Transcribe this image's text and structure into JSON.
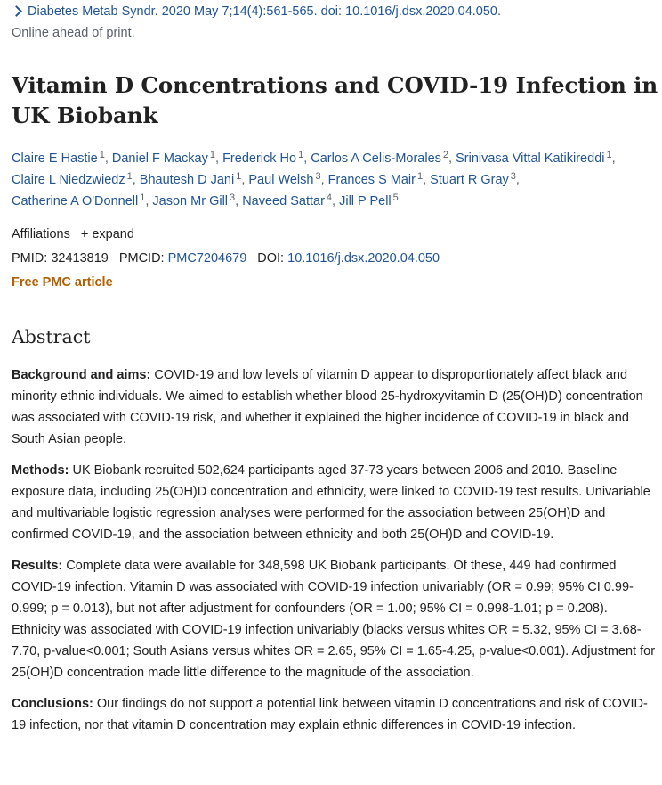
{
  "citation": {
    "journal_line": "Diabetes Metab Syndr. 2020 May 7;14(4):561-565. doi: 10.1016/j.dsx.2020.04.050.",
    "status": "Online ahead of print."
  },
  "title": "Vitamin D Concentrations and COVID-19 Infection in UK Biobank",
  "authors": [
    {
      "name": "Claire E Hastie",
      "aff": "1"
    },
    {
      "name": "Daniel F Mackay",
      "aff": "1"
    },
    {
      "name": "Frederick Ho",
      "aff": "1"
    },
    {
      "name": "Carlos A Celis-Morales",
      "aff": "2"
    },
    {
      "name": "Srinivasa Vittal Katikireddi",
      "aff": "1"
    },
    {
      "name": "Claire L Niedzwiedz",
      "aff": "1"
    },
    {
      "name": "Bhautesh D Jani",
      "aff": "1"
    },
    {
      "name": "Paul Welsh",
      "aff": "3"
    },
    {
      "name": "Frances S Mair",
      "aff": "1"
    },
    {
      "name": "Stuart R Gray",
      "aff": "3"
    },
    {
      "name": "Catherine A O'Donnell",
      "aff": "1"
    },
    {
      "name": "Jason Mr Gill",
      "aff": "3"
    },
    {
      "name": "Naveed Sattar",
      "aff": "4"
    },
    {
      "name": "Jill P Pell",
      "aff": "5"
    }
  ],
  "affiliations": {
    "label": "Affiliations",
    "expand_label": "expand"
  },
  "ids": {
    "pmid_label": "PMID:",
    "pmid": "32413819",
    "pmcid_label": "PMCID:",
    "pmcid": "PMC7204679",
    "doi_label": "DOI:",
    "doi": "10.1016/j.dsx.2020.04.050"
  },
  "free_pmc": "Free PMC article",
  "abstract": {
    "heading": "Abstract",
    "sections": [
      {
        "label": "Background and aims:",
        "text": "COVID-19 and low levels of vitamin D appear to disproportionately affect black and minority ethnic individuals. We aimed to establish whether blood 25-hydroxyvitamin D (25(OH)D) concentration was associated with COVID-19 risk, and whether it explained the higher incidence of COVID-19 in black and South Asian people."
      },
      {
        "label": "Methods:",
        "text": "UK Biobank recruited 502,624 participants aged 37-73 years between 2006 and 2010. Baseline exposure data, including 25(OH)D concentration and ethnicity, were linked to COVID-19 test results. Univariable and multivariable logistic regression analyses were performed for the association between 25(OH)D and confirmed COVID-19, and the association between ethnicity and both 25(OH)D and COVID-19."
      },
      {
        "label": "Results:",
        "text": "Complete data were available for 348,598 UK Biobank participants. Of these, 449 had confirmed COVID-19 infection. Vitamin D was associated with COVID-19 infection univariably (OR = 0.99; 95% CI 0.99-0.999; p = 0.013), but not after adjustment for confounders (OR = 1.00; 95% CI = 0.998-1.01; p = 0.208). Ethnicity was associated with COVID-19 infection univariably (blacks versus whites OR = 5.32, 95% CI = 3.68-7.70, p-value<0.001; South Asians versus whites OR = 2.65, 95% CI = 1.65-4.25, p-value<0.001). Adjustment for 25(OH)D concentration made little difference to the magnitude of the association."
      },
      {
        "label": "Conclusions:",
        "text": "Our findings do not support a potential link between vitamin D concentrations and risk of COVID-19 infection, nor that vitamin D concentration may explain ethnic differences in COVID-19 infection."
      }
    ]
  },
  "colors": {
    "link": "#205493",
    "free_pmc": "#b26000",
    "text": "#212121",
    "muted": "#5b616b"
  }
}
